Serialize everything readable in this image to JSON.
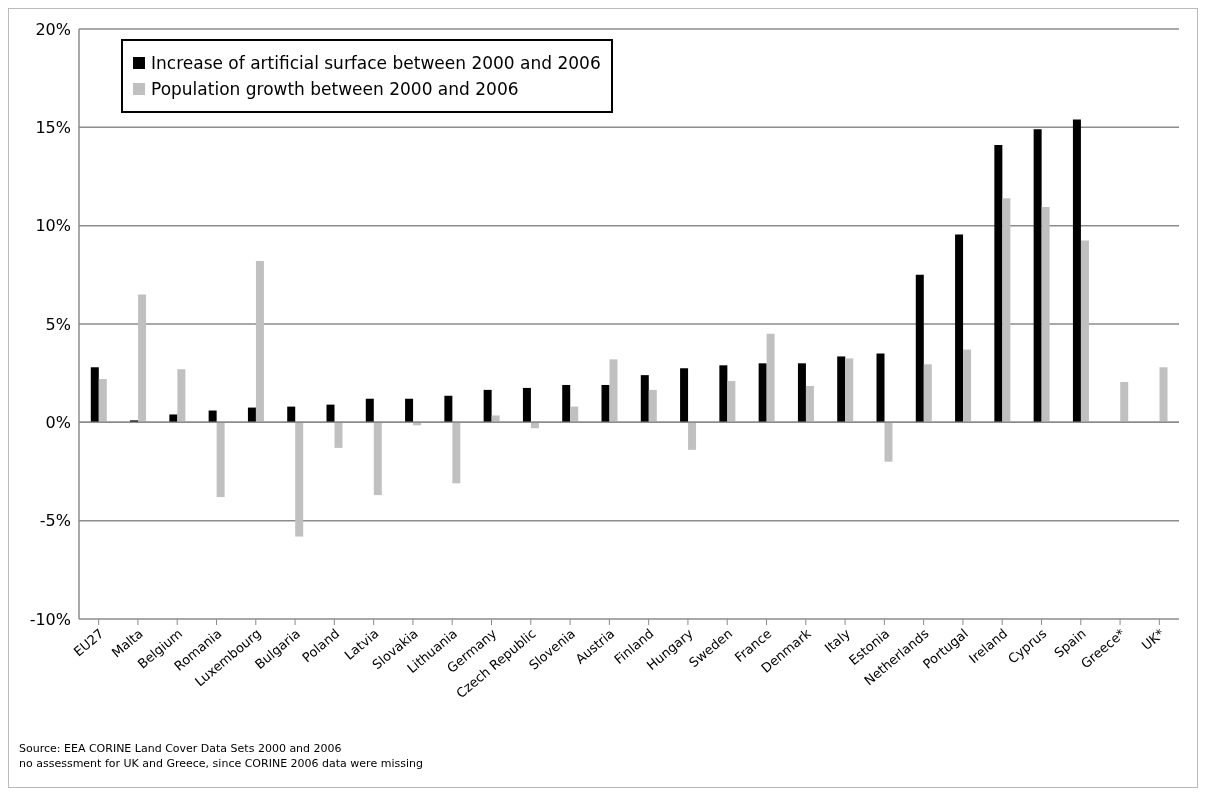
{
  "chart_data": {
    "type": "bar",
    "categories": [
      "EU27",
      "Malta",
      "Belgium",
      "Romania",
      "Luxembourg",
      "Bulgaria",
      "Poland",
      "Latvia",
      "Slovakia",
      "Lithuania",
      "Germany",
      "Czech Republic",
      "Slovenia",
      "Austria",
      "Finland",
      "Hungary",
      "Sweden",
      "France",
      "Denmark",
      "Italy",
      "Estonia",
      "Netherlands",
      "Portugal",
      "Ireland",
      "Cyprus",
      "Spain",
      "Greece*",
      "UK*"
    ],
    "series": [
      {
        "name": "Increase of artificial surface between 2000 and 2006",
        "color": "#000000",
        "values": [
          2.8,
          0.1,
          0.4,
          0.6,
          0.75,
          0.8,
          0.9,
          1.2,
          1.2,
          1.35,
          1.65,
          1.75,
          1.9,
          1.9,
          2.4,
          2.75,
          2.9,
          3.0,
          3.0,
          3.35,
          3.5,
          7.5,
          9.55,
          14.1,
          14.9,
          15.4,
          null,
          null
        ]
      },
      {
        "name": "Population growth between 2000 and 2006",
        "color": "#c0c0c0",
        "values": [
          2.2,
          6.5,
          2.7,
          -3.8,
          8.2,
          -5.8,
          -1.3,
          -3.7,
          -0.15,
          -3.1,
          0.35,
          -0.3,
          0.8,
          3.2,
          1.65,
          -1.4,
          2.1,
          4.5,
          1.85,
          3.25,
          -2.0,
          2.95,
          3.7,
          11.4,
          10.95,
          9.25,
          2.05,
          2.8
        ]
      }
    ],
    "ylim": [
      -10,
      20
    ],
    "yticks": [
      {
        "value": -10,
        "label": "-10%"
      },
      {
        "value": -5,
        "label": "-5%"
      },
      {
        "value": 0,
        "label": "0%"
      },
      {
        "value": 5,
        "label": "5%"
      },
      {
        "value": 10,
        "label": "10%"
      },
      {
        "value": 15,
        "label": "15%"
      },
      {
        "value": 20,
        "label": "20%"
      }
    ],
    "grid": "y",
    "legend": "top left",
    "annotations": [
      "Source: EEA CORINE Land Cover Data Sets 2000 and 2006",
      "no assessment for UK and Greece, since CORINE 2006 data were missing"
    ]
  }
}
